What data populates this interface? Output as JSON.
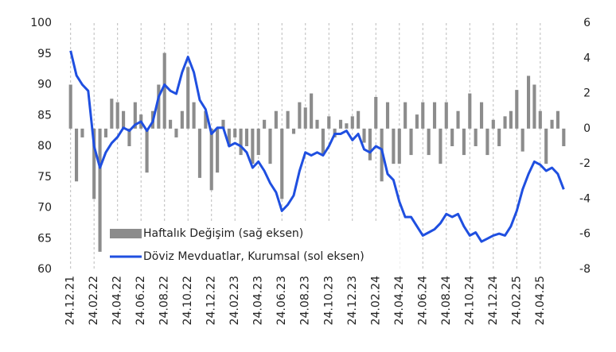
{
  "chart_data": {
    "type": "combo",
    "categories": [
      "24.12.21",
      null,
      null,
      null,
      "24.02.22",
      null,
      null,
      null,
      "24.04.22",
      null,
      null,
      null,
      "24.06.22",
      null,
      null,
      null,
      "24.08.22",
      null,
      null,
      null,
      "24.10.22",
      null,
      null,
      null,
      "24.12.22",
      null,
      null,
      null,
      "24.02.23",
      null,
      null,
      null,
      "24.04.23",
      null,
      null,
      null,
      "24.06.23",
      null,
      null,
      null,
      "24.08.23",
      null,
      null,
      null,
      "24.10.23",
      null,
      null,
      null,
      "24.12.23",
      null,
      null,
      null,
      "24.02.24",
      null,
      null,
      null,
      "24.04.24",
      null,
      null,
      null,
      "24.06.24",
      null,
      null,
      null,
      "24.08.24",
      null,
      null,
      null,
      "24.10.24",
      null,
      null,
      null,
      "24.12.24",
      null,
      null,
      null,
      "24.02.25",
      null,
      null,
      null,
      "24.04.25",
      null,
      null,
      null,
      null
    ],
    "series": [
      {
        "name": "Haftalık Değişim (sağ eksen)",
        "type": "bar",
        "axis": "y2",
        "color": "#8c8c8c",
        "values": [
          2.5,
          -3,
          -0.5,
          0,
          -4,
          -7,
          -0.5,
          1.7,
          1.5,
          1,
          -1,
          1.5,
          0.8,
          -2.5,
          1,
          2.5,
          4.3,
          0.5,
          -0.5,
          1,
          3.5,
          1.5,
          -2.8,
          1,
          -3.5,
          -2.5,
          0.5,
          -1,
          -0.5,
          -1.5,
          -1,
          -2,
          -1.5,
          0.5,
          -2,
          1,
          -4,
          1,
          -0.3,
          1.5,
          1.2,
          2,
          0.5,
          -1.5,
          0.7,
          -0.5,
          0.5,
          0.3,
          0.7,
          1,
          -0.8,
          -1.8,
          1.8,
          -3,
          1.5,
          -2,
          -2,
          1.5,
          -1.5,
          0.8,
          1.5,
          -1.5,
          1.5,
          -2,
          1.5,
          -1,
          1,
          -1.5,
          2,
          -1,
          1.5,
          -1.5,
          0.5,
          -1,
          0.7,
          1,
          2.2,
          -1.3,
          3,
          2.5,
          1,
          -2,
          0.5,
          1,
          -1
        ]
      },
      {
        "name": "Döviz Mevduatlar, Kurumsal (sol eksen)",
        "type": "line",
        "color": "#1f4fe0",
        "values": [
          95.5,
          91.5,
          90,
          89,
          80,
          76.5,
          79,
          80.5,
          81.5,
          83,
          82.5,
          83.5,
          84,
          82.5,
          84,
          88,
          90,
          89,
          88.5,
          92,
          94.5,
          92,
          87.5,
          86,
          82,
          83,
          83,
          80,
          80.5,
          80,
          79,
          76.5,
          77.5,
          76,
          74,
          72.5,
          69.5,
          70.5,
          72,
          76,
          79,
          78.5,
          79,
          78.5,
          80,
          82,
          82,
          82.5,
          81,
          82,
          79.5,
          79,
          80,
          79.5,
          75.5,
          74.5,
          71,
          68.5,
          68.5,
          67,
          65.5,
          66,
          66.5,
          67.5,
          69,
          68.5,
          69,
          67,
          65.5,
          66,
          64.5,
          65,
          65.5,
          65.8,
          65.5,
          67,
          69.5,
          73,
          75.5,
          77.5,
          77,
          76,
          76.5,
          75.5,
          73
        ]
      }
    ],
    "ylim": [
      60,
      100
    ],
    "yticks": [
      60,
      65,
      70,
      75,
      80,
      85,
      90,
      95,
      100
    ],
    "y2lim": [
      -8,
      6
    ],
    "y2ticks": [
      -8,
      -6,
      -4,
      -2,
      0,
      2,
      4,
      6
    ],
    "grid": "x",
    "legend": "lower left"
  }
}
